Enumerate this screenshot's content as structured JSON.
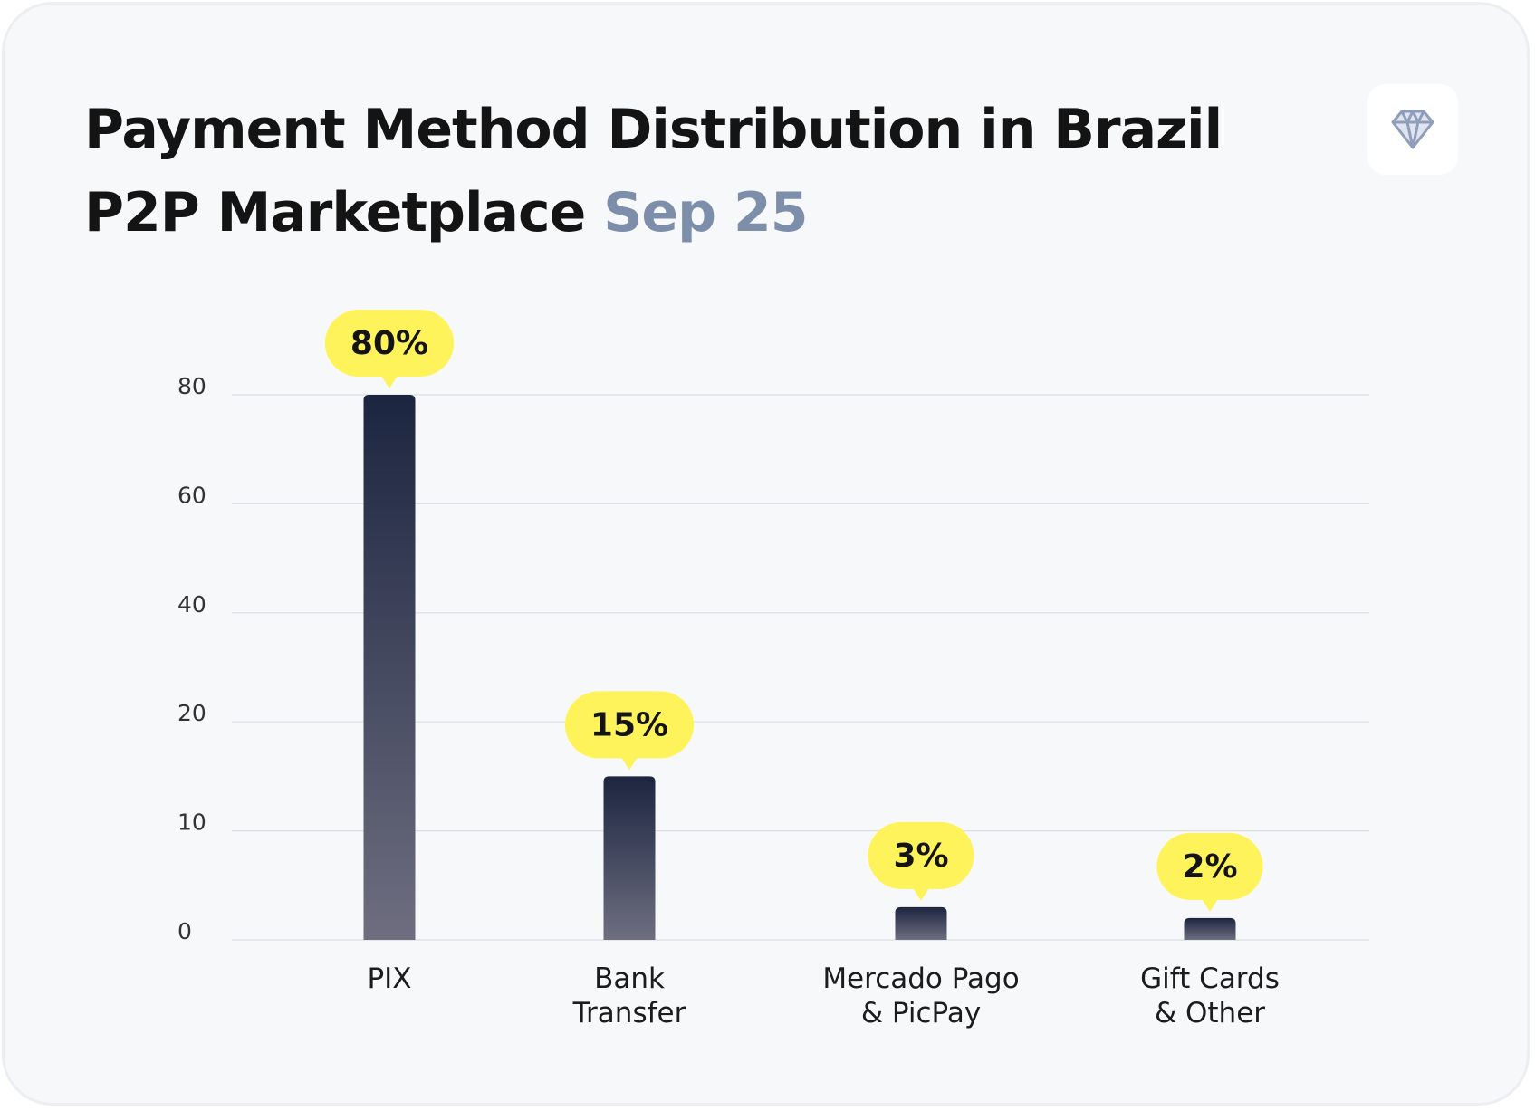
{
  "chart_data": {
    "type": "bar",
    "title": "Payment Method Distribution in Brazil P2P Marketplace",
    "subtitle": "Sep 25",
    "categories": [
      "PIX",
      "Bank\nTransfer",
      "Mercado Pago\n& PicPay",
      "Gift Cards\n& Other"
    ],
    "values": [
      80,
      15,
      3,
      2
    ],
    "value_labels": [
      "80%",
      "15%",
      "3%",
      "2%"
    ],
    "color": "#1c2540",
    "ylim": [
      0,
      80
    ],
    "yticks": [
      0,
      10,
      20,
      40,
      60,
      80
    ],
    "grid": true
  }
}
